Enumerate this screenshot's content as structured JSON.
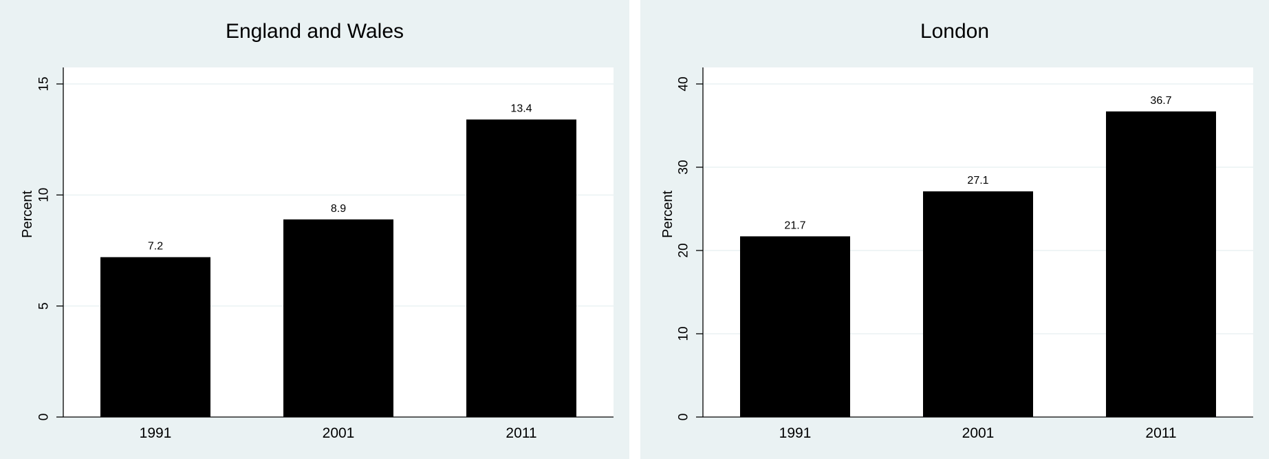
{
  "chart_data": [
    {
      "type": "bar",
      "title": "England and Wales",
      "categories": [
        "1991",
        "2001",
        "2011"
      ],
      "values": [
        7.2,
        8.9,
        13.4
      ],
      "data_labels": [
        "7.2",
        "8.9",
        "13.4"
      ],
      "xlabel": "",
      "ylabel": "Percent",
      "ylim": [
        0,
        15
      ],
      "yticks": [
        0,
        5,
        10,
        15
      ],
      "grid": true,
      "colors": {
        "bar": "#000000",
        "background": "#eaf2f3",
        "plot": "#ffffff"
      }
    },
    {
      "type": "bar",
      "title": "London",
      "categories": [
        "1991",
        "2001",
        "2011"
      ],
      "values": [
        21.7,
        27.1,
        36.7
      ],
      "data_labels": [
        "21.7",
        "27.1",
        "36.7"
      ],
      "xlabel": "",
      "ylabel": "Percent",
      "ylim": [
        0,
        40
      ],
      "yticks": [
        0,
        10,
        20,
        30,
        40
      ],
      "grid": true,
      "colors": {
        "bar": "#000000",
        "background": "#eaf2f3",
        "plot": "#ffffff"
      }
    }
  ]
}
